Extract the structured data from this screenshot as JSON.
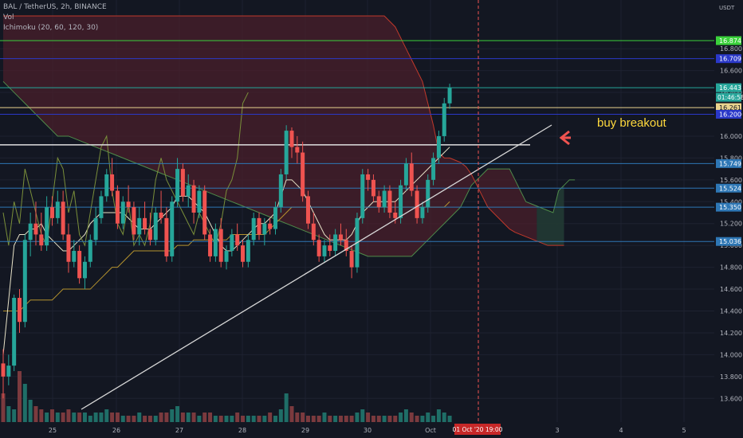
{
  "header": {
    "symbol_line": "BAL / TetherUS, 2h, BINANCE",
    "volume_label": "Vol",
    "indicator_label": "Ichimoku (20, 60, 120, 30)"
  },
  "annotation": {
    "text": "buy breakout"
  },
  "colors": {
    "background": "#131722",
    "up": "#26a69a",
    "down": "#ef5350",
    "up_vol": "#1f6e67",
    "down_vol": "#7b3a3e",
    "cloud": "#4a1f2b",
    "cloud_green": "#1e3a33",
    "grid": "#1e2230"
  },
  "chart_data": {
    "type": "candlestick",
    "y_axis": {
      "unit_label": "USDT",
      "range": [
        13.5,
        17.1
      ],
      "ticks": [
        "16.800",
        "16.600",
        "16.400",
        "16.200",
        "16.000",
        "15.800",
        "15.600",
        "15.400",
        "15.200",
        "15.000",
        "14.800",
        "14.600",
        "14.400",
        "14.200",
        "14.000",
        "13.800",
        "13.600"
      ]
    },
    "x_axis": {
      "ticks": [
        "25",
        "26",
        "27",
        "28",
        "29",
        "30",
        "Oct",
        "3",
        "4",
        "5"
      ],
      "cursor_label": "01 Oct '20  19:00"
    },
    "price_lines": [
      {
        "value": 16.874,
        "label": "16.874",
        "color": "#3bd13b",
        "bg": "#3bd13b"
      },
      {
        "value": 16.709,
        "label": "16.709",
        "color": "#2a38c8",
        "bg": "#2a38c8"
      },
      {
        "value": 16.443,
        "label": "16.443",
        "color": "#26a69a",
        "bg": "#26a69a"
      },
      {
        "value": 16.261,
        "label": "16.261",
        "color": "#e9d38e",
        "bg": "#e9d38e"
      },
      {
        "value": 16.2,
        "label": "16.200",
        "color": "#2a38c8",
        "bg": "#2a38c8"
      },
      {
        "value": 15.749,
        "label": "15.749",
        "color": "#2e77b5",
        "bg": "#2e77b5"
      },
      {
        "value": 15.524,
        "label": "15.524",
        "color": "#2e77b5",
        "bg": "#2e77b5"
      },
      {
        "value": 15.35,
        "label": "15.350",
        "color": "#2e77b5",
        "bg": "#2e77b5"
      },
      {
        "value": 15.036,
        "label": "15.036",
        "color": "#2e77b5",
        "bg": "#2e77b5"
      }
    ],
    "countdown_label": "01:46:58",
    "white_level": 15.92,
    "trendline": {
      "from": [
        0,
        13.5
      ],
      "to": [
        67,
        16.02
      ]
    },
    "candles": [
      [
        13.92,
        14.05,
        13.6,
        13.8
      ],
      [
        13.8,
        14.0,
        13.72,
        13.9
      ],
      [
        13.9,
        14.55,
        13.85,
        14.52
      ],
      [
        14.52,
        14.6,
        14.2,
        14.3
      ],
      [
        14.3,
        15.1,
        14.25,
        15.05
      ],
      [
        15.05,
        15.3,
        14.9,
        15.2
      ],
      [
        15.2,
        15.4,
        15.0,
        15.1
      ],
      [
        15.1,
        15.3,
        14.95,
        15.0
      ],
      [
        15.0,
        15.45,
        14.95,
        15.35
      ],
      [
        15.35,
        15.45,
        15.18,
        15.25
      ],
      [
        15.25,
        15.5,
        15.2,
        15.4
      ],
      [
        15.4,
        15.5,
        15.05,
        15.1
      ],
      [
        15.1,
        15.2,
        14.75,
        14.85
      ],
      [
        14.85,
        15.05,
        14.8,
        14.95
      ],
      [
        14.95,
        15.0,
        14.65,
        14.7
      ],
      [
        14.7,
        14.9,
        14.6,
        14.85
      ],
      [
        14.85,
        15.1,
        14.8,
        15.05
      ],
      [
        15.05,
        15.35,
        15.0,
        15.25
      ],
      [
        15.25,
        15.5,
        15.2,
        15.45
      ],
      [
        15.45,
        15.7,
        15.4,
        15.65
      ],
      [
        15.65,
        15.8,
        15.45,
        15.5
      ],
      [
        15.5,
        15.55,
        15.15,
        15.2
      ],
      [
        15.2,
        15.45,
        15.15,
        15.4
      ],
      [
        15.4,
        15.55,
        15.3,
        15.35
      ],
      [
        15.35,
        15.4,
        15.05,
        15.1
      ],
      [
        15.1,
        15.35,
        15.0,
        15.25
      ],
      [
        15.25,
        15.4,
        15.1,
        15.15
      ],
      [
        15.15,
        15.3,
        15.0,
        15.05
      ],
      [
        15.05,
        15.35,
        15.0,
        15.3
      ],
      [
        15.3,
        15.5,
        15.2,
        15.25
      ],
      [
        15.25,
        15.35,
        14.85,
        14.9
      ],
      [
        14.9,
        15.45,
        14.85,
        15.4
      ],
      [
        15.4,
        15.8,
        15.35,
        15.7
      ],
      [
        15.7,
        15.75,
        15.4,
        15.45
      ],
      [
        15.45,
        15.65,
        15.35,
        15.55
      ],
      [
        15.55,
        15.6,
        15.2,
        15.3
      ],
      [
        15.3,
        15.55,
        15.25,
        15.5
      ],
      [
        15.5,
        15.55,
        15.05,
        15.1
      ],
      [
        15.1,
        15.15,
        14.85,
        14.9
      ],
      [
        14.9,
        15.2,
        14.85,
        15.15
      ],
      [
        15.15,
        15.25,
        14.8,
        14.85
      ],
      [
        14.85,
        15.0,
        14.78,
        14.95
      ],
      [
        14.95,
        15.15,
        14.9,
        15.1
      ],
      [
        15.1,
        15.2,
        14.95,
        15.0
      ],
      [
        15.0,
        15.05,
        14.8,
        14.85
      ],
      [
        14.85,
        15.1,
        14.8,
        15.05
      ],
      [
        15.05,
        15.3,
        15.0,
        15.25
      ],
      [
        15.25,
        15.3,
        15.05,
        15.1
      ],
      [
        15.1,
        15.25,
        15.0,
        15.2
      ],
      [
        15.2,
        15.25,
        15.1,
        15.15
      ],
      [
        15.15,
        15.4,
        15.1,
        15.35
      ],
      [
        15.35,
        15.7,
        15.3,
        15.65
      ],
      [
        15.65,
        16.1,
        15.6,
        16.05
      ],
      [
        16.05,
        16.08,
        15.8,
        15.9
      ],
      [
        15.9,
        16.0,
        15.75,
        15.85
      ],
      [
        15.85,
        15.95,
        15.4,
        15.45
      ],
      [
        15.45,
        15.5,
        15.15,
        15.2
      ],
      [
        15.2,
        15.3,
        15.0,
        15.05
      ],
      [
        15.05,
        15.1,
        14.85,
        14.9
      ],
      [
        14.9,
        15.05,
        14.85,
        15.0
      ],
      [
        15.0,
        15.1,
        14.9,
        14.95
      ],
      [
        14.95,
        15.15,
        14.9,
        15.1
      ],
      [
        15.1,
        15.2,
        15.0,
        15.05
      ],
      [
        15.05,
        15.15,
        14.9,
        14.95
      ],
      [
        14.95,
        15.0,
        14.7,
        14.8
      ],
      [
        14.8,
        15.3,
        14.75,
        15.25
      ],
      [
        15.25,
        15.7,
        15.2,
        15.65
      ],
      [
        15.65,
        15.7,
        15.5,
        15.6
      ],
      [
        15.6,
        15.65,
        15.4,
        15.45
      ],
      [
        15.45,
        15.5,
        15.3,
        15.35
      ],
      [
        15.35,
        15.55,
        15.3,
        15.5
      ],
      [
        15.5,
        15.55,
        15.25,
        15.3
      ],
      [
        15.3,
        15.4,
        15.2,
        15.25
      ],
      [
        15.25,
        15.6,
        15.2,
        15.55
      ],
      [
        15.55,
        15.8,
        15.5,
        15.75
      ],
      [
        15.75,
        15.85,
        15.45,
        15.5
      ],
      [
        15.5,
        15.55,
        15.2,
        15.25
      ],
      [
        15.25,
        15.4,
        15.2,
        15.35
      ],
      [
        15.35,
        15.65,
        15.3,
        15.6
      ],
      [
        15.6,
        15.85,
        15.55,
        15.8
      ],
      [
        15.8,
        16.05,
        15.75,
        16.0
      ],
      [
        16.0,
        16.35,
        15.95,
        16.3
      ],
      [
        16.3,
        16.48,
        16.25,
        16.44
      ]
    ],
    "volume": [
      9,
      5,
      4,
      16,
      12,
      7,
      5,
      4,
      3,
      4,
      3,
      3,
      4,
      3,
      3,
      3,
      2,
      3,
      3,
      4,
      3,
      3,
      2,
      2,
      2,
      3,
      2,
      2,
      2,
      3,
      3,
      4,
      5,
      3,
      3,
      3,
      2,
      3,
      3,
      2,
      2,
      2,
      2,
      3,
      2,
      2,
      2,
      2,
      2,
      3,
      2,
      4,
      9,
      5,
      3,
      3,
      2,
      2,
      2,
      3,
      2,
      2,
      2,
      2,
      2,
      3,
      4,
      3,
      2,
      2,
      2,
      2,
      2,
      3,
      4,
      3,
      2,
      2,
      3,
      2,
      4,
      3,
      2
    ],
    "ichimoku": {
      "conversion": [
        14.0,
        14.5,
        15.0,
        15.1,
        15.1,
        15.15,
        15.15,
        15.2,
        15.1,
        15.05,
        15.0,
        14.95,
        14.95,
        15.0,
        15.05,
        15.1,
        15.2,
        15.25,
        15.3,
        15.3,
        15.3,
        15.3,
        15.3,
        15.25,
        15.2,
        15.15,
        15.15,
        15.15,
        15.2,
        15.25,
        15.3,
        15.35,
        15.45,
        15.45,
        15.45,
        15.4,
        15.35,
        15.3,
        15.2,
        15.1,
        15.0,
        14.95,
        14.95,
        15.0,
        15.05,
        15.1,
        15.15,
        15.2,
        15.2,
        15.25,
        15.3,
        15.45,
        15.6,
        15.6,
        15.55,
        15.5,
        15.4,
        15.3,
        15.2,
        15.1,
        15.05,
        15.05,
        15.05,
        15.05,
        15.1,
        15.2,
        15.3,
        15.35,
        15.4,
        15.4,
        15.4,
        15.4,
        15.4,
        15.45,
        15.5,
        15.55,
        15.6,
        15.65,
        15.7,
        15.75,
        15.8,
        15.85,
        15.9
      ],
      "base": [
        14.4,
        14.4,
        14.4,
        14.4,
        14.45,
        14.5,
        14.5,
        14.5,
        14.5,
        14.5,
        14.55,
        14.6,
        14.6,
        14.6,
        14.6,
        14.6,
        14.6,
        14.65,
        14.7,
        14.75,
        14.8,
        14.8,
        14.85,
        14.9,
        14.95,
        14.95,
        14.95,
        14.95,
        14.95,
        14.95,
        14.95,
        14.95,
        15.0,
        15.0,
        15.0,
        15.05,
        15.05,
        15.05,
        15.05,
        15.05,
        15.05,
        15.05,
        15.1,
        15.1,
        15.1,
        15.1,
        15.1,
        15.1,
        15.1,
        15.15,
        15.2,
        15.25,
        15.3,
        15.35,
        15.35,
        15.35,
        15.35,
        15.35,
        15.35,
        15.35,
        15.35,
        15.35,
        15.35,
        15.35,
        15.35,
        15.35,
        15.35,
        15.35,
        15.35,
        15.35,
        15.35,
        15.35,
        15.35,
        15.35,
        15.35,
        15.35,
        15.35,
        15.35,
        15.35,
        15.35,
        15.35,
        15.35,
        15.4
      ],
      "span_a": [
        16.5,
        16.45,
        16.4,
        16.35,
        16.3,
        16.25,
        16.2,
        16.15,
        16.1,
        16.05,
        16.0,
        16.0,
        16.0,
        15.98,
        15.96,
        15.94,
        15.92,
        15.9,
        15.88,
        15.86,
        15.84,
        15.82,
        15.8,
        15.78,
        15.76,
        15.74,
        15.72,
        15.7,
        15.68,
        15.66,
        15.64,
        15.62,
        15.6,
        15.58,
        15.56,
        15.54,
        15.52,
        15.5,
        15.48,
        15.46,
        15.44,
        15.42,
        15.4,
        15.38,
        15.36,
        15.34,
        15.32,
        15.3,
        15.28,
        15.26,
        15.24,
        15.22,
        15.2,
        15.18,
        15.16,
        15.14,
        15.12,
        15.1,
        15.08,
        15.06,
        15.04,
        15.02,
        15.0,
        14.98,
        14.96,
        14.94,
        14.92,
        14.9,
        14.9,
        14.9,
        14.9,
        14.9,
        14.9,
        14.9,
        14.9,
        14.9,
        14.95,
        15.0,
        15.05,
        15.1,
        15.15,
        15.2,
        15.25,
        15.3,
        15.35,
        15.45,
        15.55,
        15.6,
        15.65,
        15.7,
        15.7,
        15.7,
        15.7,
        15.7,
        15.6,
        15.5,
        15.4,
        15.38,
        15.36,
        15.34,
        15.32,
        15.3,
        15.5,
        15.55,
        15.6,
        15.6
      ],
      "span_b": [
        17.1,
        17.1,
        17.1,
        17.1,
        17.1,
        17.1,
        17.1,
        17.1,
        17.1,
        17.1,
        17.1,
        17.1,
        17.1,
        17.1,
        17.1,
        17.1,
        17.1,
        17.1,
        17.1,
        17.1,
        17.1,
        17.1,
        17.1,
        17.1,
        17.1,
        17.1,
        17.1,
        17.1,
        17.1,
        17.1,
        17.1,
        17.1,
        17.1,
        17.1,
        17.1,
        17.1,
        17.1,
        17.1,
        17.1,
        17.1,
        17.1,
        17.1,
        17.1,
        17.1,
        17.1,
        17.1,
        17.1,
        17.1,
        17.1,
        17.1,
        17.1,
        17.1,
        17.1,
        17.1,
        17.1,
        17.1,
        17.1,
        17.1,
        17.1,
        17.1,
        17.1,
        17.1,
        17.1,
        17.1,
        17.1,
        17.1,
        17.1,
        17.1,
        17.1,
        17.1,
        17.1,
        17.05,
        17.0,
        16.9,
        16.8,
        16.7,
        16.6,
        16.5,
        16.3,
        16.1,
        15.85,
        15.8,
        15.8,
        15.78,
        15.76,
        15.72,
        15.65,
        15.55,
        15.45,
        15.35,
        15.3,
        15.25,
        15.2,
        15.15,
        15.12,
        15.1,
        15.08,
        15.06,
        15.04,
        15.02,
        15.0,
        15.0,
        15.0,
        15.0
      ],
      "lagging": [
        15.3,
        15.0,
        15.4,
        15.2,
        15.7,
        15.5,
        15.3,
        15.1,
        15.0,
        15.4,
        15.8,
        15.7,
        15.3,
        15.5,
        15.1,
        15.0,
        15.3,
        15.6,
        15.9,
        16.0,
        15.5,
        15.2,
        15.1,
        15.4,
        15.0,
        15.1,
        15.0,
        15.2,
        15.6,
        15.8,
        15.6,
        15.5,
        15.4,
        15.3,
        15.2,
        15.1,
        15.3,
        15.2,
        15.1,
        15.0,
        15.2,
        15.5,
        15.6,
        15.8,
        16.3,
        16.4
      ]
    }
  }
}
